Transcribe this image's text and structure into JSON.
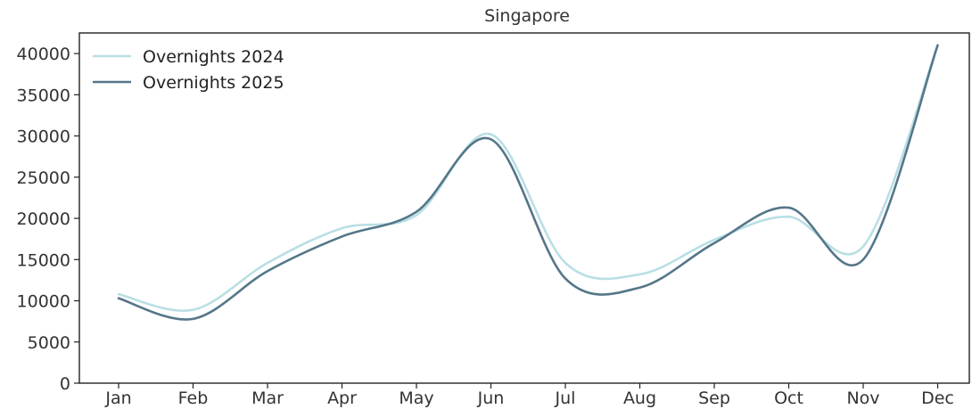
{
  "chart_data": {
    "type": "line",
    "title": "Singapore",
    "xlabel": "",
    "ylabel": "",
    "categories": [
      "Jan",
      "Feb",
      "Mar",
      "Apr",
      "May",
      "Jun",
      "Jul",
      "Aug",
      "Sep",
      "Oct",
      "Nov",
      "Dec"
    ],
    "yticks": [
      0,
      5000,
      10000,
      15000,
      20000,
      25000,
      30000,
      35000,
      40000
    ],
    "ylim": [
      0,
      42500
    ],
    "grid": false,
    "legend_position": "top-left",
    "series": [
      {
        "name": "Overnights 2024",
        "color": "#b9dfe4",
        "values": [
          10800,
          8900,
          14600,
          18800,
          20400,
          30200,
          14600,
          13200,
          17400,
          20200,
          16600,
          41000
        ]
      },
      {
        "name": "Overnights 2025",
        "color": "#557689",
        "values": [
          10300,
          7800,
          13600,
          17800,
          20800,
          29600,
          12700,
          11600,
          17000,
          21300,
          15000,
          41000
        ]
      }
    ]
  }
}
